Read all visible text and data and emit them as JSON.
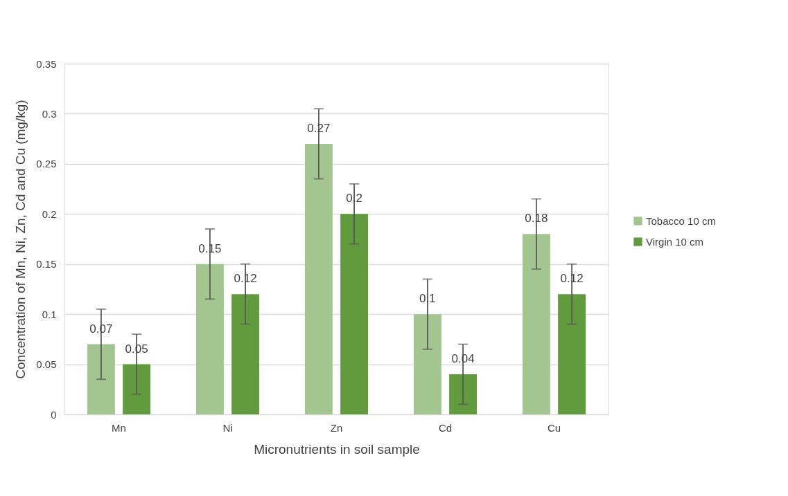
{
  "chart_data": {
    "type": "bar",
    "xlabel": "Micronutrients in soil sample",
    "ylabel": "Concentration of Mn, Ni, Zn, Cd and Cu (mg/kg)",
    "categories": [
      "Mn",
      "Ni",
      "Zn",
      "Cd",
      "Cu"
    ],
    "series": [
      {
        "name": "Tobacco 10 cm",
        "color": "#a3c58f",
        "values": [
          0.07,
          0.15,
          0.27,
          0.1,
          0.18
        ],
        "errors": [
          0.035,
          0.035,
          0.035,
          0.035,
          0.035
        ]
      },
      {
        "name": "Virgin 10 cm",
        "color": "#629a3e",
        "values": [
          0.05,
          0.12,
          0.2,
          0.04,
          0.12
        ],
        "errors": [
          0.03,
          0.03,
          0.03,
          0.03,
          0.03
        ]
      }
    ],
    "ylim": [
      0,
      0.35
    ],
    "yticks": [
      0,
      0.05,
      0.1,
      0.15,
      0.2,
      0.25,
      0.3,
      0.35
    ],
    "grid": "y",
    "legend": "right",
    "data_labels": true
  }
}
